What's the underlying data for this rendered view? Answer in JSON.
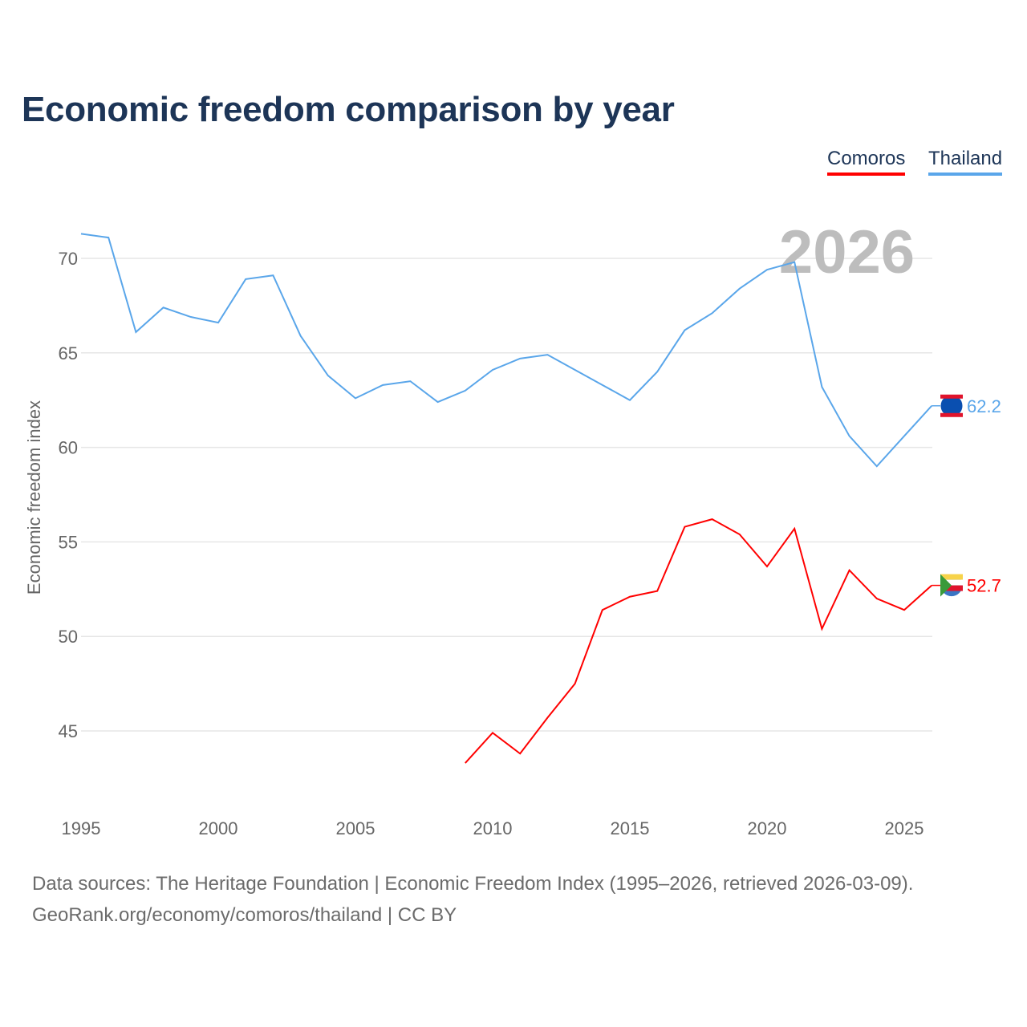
{
  "title": "Economic freedom comparison by year",
  "legend": [
    {
      "name": "Comoros",
      "color": "#ff0000"
    },
    {
      "name": "Thailand",
      "color": "#5aa6ea"
    }
  ],
  "year_watermark": "2026",
  "sources_line1": "Data sources: The Heritage Foundation | Economic Freedom Index (1995–2026, retrieved 2026-03-09).",
  "sources_line2": "GeoRank.org/economy/comoros/thailand | CC BY",
  "chart_data": {
    "type": "line",
    "title": "Economic freedom comparison by year",
    "xlabel": "",
    "ylabel": "Economic freedom index",
    "xlim": [
      1995,
      2026
    ],
    "ylim": [
      41.5,
      72
    ],
    "xticks": [
      1995,
      2000,
      2005,
      2010,
      2015,
      2020,
      2025
    ],
    "yticks": [
      45,
      50,
      55,
      60,
      65,
      70
    ],
    "grid": true,
    "legend_position": "top-right",
    "series": [
      {
        "name": "Thailand",
        "color": "#5aa6ea",
        "end_label": "62.2",
        "x": [
          1995,
          1996,
          1997,
          1998,
          1999,
          2000,
          2001,
          2002,
          2003,
          2004,
          2005,
          2006,
          2007,
          2008,
          2009,
          2010,
          2011,
          2012,
          2013,
          2014,
          2015,
          2016,
          2017,
          2018,
          2019,
          2020,
          2021,
          2022,
          2023,
          2024,
          2025,
          2026
        ],
        "values": [
          71.3,
          71.1,
          66.1,
          67.4,
          66.9,
          66.6,
          68.9,
          69.1,
          65.9,
          63.8,
          62.6,
          63.3,
          63.5,
          62.4,
          63.0,
          64.1,
          64.7,
          64.9,
          64.1,
          63.3,
          62.5,
          64.0,
          66.2,
          67.1,
          68.4,
          69.4,
          69.8,
          63.2,
          60.6,
          59.0,
          60.6,
          62.2
        ]
      },
      {
        "name": "Comoros",
        "color": "#ff0000",
        "end_label": "52.7",
        "x": [
          2009,
          2010,
          2011,
          2012,
          2013,
          2014,
          2015,
          2016,
          2017,
          2018,
          2019,
          2020,
          2021,
          2022,
          2023,
          2024,
          2025,
          2026
        ],
        "values": [
          43.3,
          44.9,
          43.8,
          45.7,
          47.5,
          51.4,
          52.1,
          52.4,
          55.8,
          56.2,
          55.4,
          53.7,
          55.7,
          50.4,
          53.5,
          52.0,
          51.4,
          52.7
        ]
      }
    ]
  }
}
